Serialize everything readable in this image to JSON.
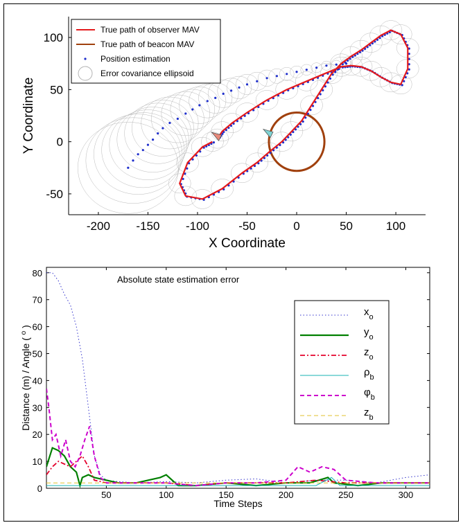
{
  "chart_data": [
    {
      "type": "scatter",
      "xlabel": "X Coordinate",
      "ylabel": "Y Coordinate",
      "xlim": [
        -230,
        130
      ],
      "ylim": [
        -70,
        120
      ],
      "xticks": [
        -200,
        -150,
        -100,
        -50,
        0,
        50,
        100
      ],
      "yticks": [
        -50,
        0,
        50,
        100
      ],
      "legend_position": "top-left",
      "grid": false,
      "legend": [
        {
          "label": "True path of observer MAV",
          "color": "#e41a1c",
          "style": "line"
        },
        {
          "label": "True path of beacon MAV",
          "color": "#a0400d",
          "style": "line"
        },
        {
          "label": "Position estimation",
          "color": "#1f2fcc",
          "style": "point"
        },
        {
          "label": "Error covariance ellipsoid",
          "color": "#b3b3b3",
          "style": "circle"
        }
      ],
      "series": [
        {
          "name": "True path of observer MAV",
          "kind": "line",
          "color": "#e41a1c",
          "x": [
            -85,
            -95,
            -110,
            -118,
            -112,
            -95,
            -75,
            -55,
            -40,
            -28,
            -15,
            -5,
            5,
            15,
            25,
            35,
            45,
            55,
            65,
            75,
            85,
            95,
            105,
            112,
            112,
            105,
            95,
            85,
            75,
            65,
            55,
            45,
            30,
            10,
            -10,
            -30,
            -50,
            -65,
            -75,
            -80
          ],
          "y": [
            0,
            -5,
            -20,
            -40,
            -52,
            -55,
            -45,
            -30,
            -20,
            -10,
            0,
            10,
            20,
            35,
            50,
            65,
            75,
            82,
            88,
            95,
            102,
            107,
            103,
            90,
            70,
            55,
            57,
            62,
            68,
            72,
            73,
            72,
            66,
            58,
            50,
            40,
            28,
            18,
            10,
            3
          ]
        },
        {
          "name": "True path of beacon MAV",
          "kind": "circle",
          "color": "#a0400d",
          "center": [
            0,
            0
          ],
          "radius": 28
        },
        {
          "name": "Position estimation",
          "kind": "points",
          "color": "#1f2fcc",
          "x": [
            -170,
            -165,
            -160,
            -155,
            -150,
            -145,
            -140,
            -135,
            -128,
            -120,
            -112,
            -105,
            -98,
            -90,
            -82,
            -74,
            -66,
            -58,
            -50,
            -40,
            -30,
            -20,
            -10,
            0,
            10,
            20,
            30,
            40,
            50
          ],
          "y": [
            -25,
            -18,
            -12,
            -8,
            -3,
            2,
            8,
            13,
            18,
            22,
            27,
            31,
            35,
            39,
            42,
            46,
            49,
            52,
            55,
            58,
            61,
            63,
            65,
            67,
            69,
            71,
            73,
            74,
            75
          ]
        },
        {
          "name": "Error covariance ellipsoid",
          "kind": "ellipses",
          "color": "#b3b3b3"
        }
      ],
      "markers": [
        {
          "name": "observer-mav",
          "x": -80,
          "y": 5,
          "color": "#e8897a"
        },
        {
          "name": "beacon-mav",
          "x": -28,
          "y": 8,
          "color": "#7ed4d4"
        }
      ]
    },
    {
      "type": "line",
      "title": "Absolute state estimation error",
      "xlabel": "Time Steps",
      "ylabel": "Distance (m) / Angle ( o )",
      "xlim": [
        0,
        320
      ],
      "ylim": [
        0,
        82
      ],
      "xticks": [
        50,
        100,
        150,
        200,
        250,
        300
      ],
      "yticks": [
        0,
        10,
        20,
        30,
        40,
        50,
        60,
        70,
        80
      ],
      "grid": false,
      "legend_position": "right",
      "series": [
        {
          "name": "x",
          "sub": "o",
          "color": "#3333cc",
          "dash": "1.5 3",
          "width": 1,
          "x": [
            0,
            5,
            10,
            15,
            20,
            25,
            30,
            35,
            40,
            45,
            50,
            60,
            75,
            100,
            125,
            150,
            175,
            200,
            225,
            250,
            275,
            300,
            320
          ],
          "y": [
            80,
            80,
            77,
            72,
            68,
            60,
            48,
            30,
            12,
            5,
            3,
            2.5,
            2,
            2.5,
            2,
            3,
            3.5,
            2,
            3,
            3,
            2,
            4,
            5
          ]
        },
        {
          "name": "y",
          "sub": "o",
          "color": "#007f00",
          "dash": "",
          "width": 2.2,
          "x": [
            0,
            5,
            10,
            15,
            20,
            25,
            28,
            30,
            35,
            40,
            50,
            60,
            75,
            95,
            100,
            110,
            125,
            150,
            175,
            200,
            220,
            235,
            240,
            260,
            280,
            300,
            320
          ],
          "y": [
            8,
            15,
            14,
            12,
            8,
            6,
            1,
            4,
            5,
            4,
            3,
            2,
            2,
            4,
            5,
            1,
            1,
            2,
            1,
            2,
            2,
            4,
            2,
            1,
            2,
            2,
            2
          ]
        },
        {
          "name": "z",
          "sub": "o",
          "color": "#e4002b",
          "dash": "7 3 2 3",
          "width": 1.8,
          "x": [
            0,
            5,
            10,
            15,
            20,
            25,
            30,
            35,
            40,
            50,
            75,
            100,
            125,
            150,
            175,
            200,
            225,
            250,
            275,
            300,
            320
          ],
          "y": [
            5,
            8,
            10,
            9,
            8,
            10,
            12,
            8,
            3,
            2,
            2,
            2,
            1,
            2,
            2,
            2,
            3,
            2,
            2,
            2,
            2
          ]
        },
        {
          "name": "ρ",
          "sub": "b",
          "color": "#17b3b3",
          "dash": "",
          "width": 1,
          "x": [
            0,
            25,
            50,
            75,
            100,
            125,
            150,
            175,
            200,
            225,
            238,
            245,
            250,
            275,
            300,
            320
          ],
          "y": [
            1,
            1,
            1,
            1,
            1,
            1,
            1,
            1,
            1,
            1,
            4,
            1,
            1,
            1,
            1,
            1
          ]
        },
        {
          "name": "φ",
          "sub": "b",
          "color": "#cc00cc",
          "dash": "6 4",
          "width": 2,
          "x": [
            0,
            2,
            5,
            8,
            12,
            16,
            20,
            24,
            28,
            32,
            36,
            40,
            45,
            50,
            75,
            100,
            125,
            150,
            175,
            200,
            210,
            220,
            230,
            240,
            250,
            275,
            300,
            320
          ],
          "y": [
            37,
            30,
            18,
            20,
            12,
            18,
            10,
            8,
            12,
            18,
            23,
            12,
            4,
            2,
            2,
            2,
            1,
            2,
            2,
            3,
            8,
            6,
            8,
            7,
            3,
            2,
            2,
            2
          ]
        },
        {
          "name": "z",
          "sub": "b",
          "color": "#e0c12c",
          "dash": "6 4",
          "width": 1,
          "x": [
            0,
            320
          ],
          "y": [
            2,
            2
          ]
        }
      ]
    }
  ]
}
